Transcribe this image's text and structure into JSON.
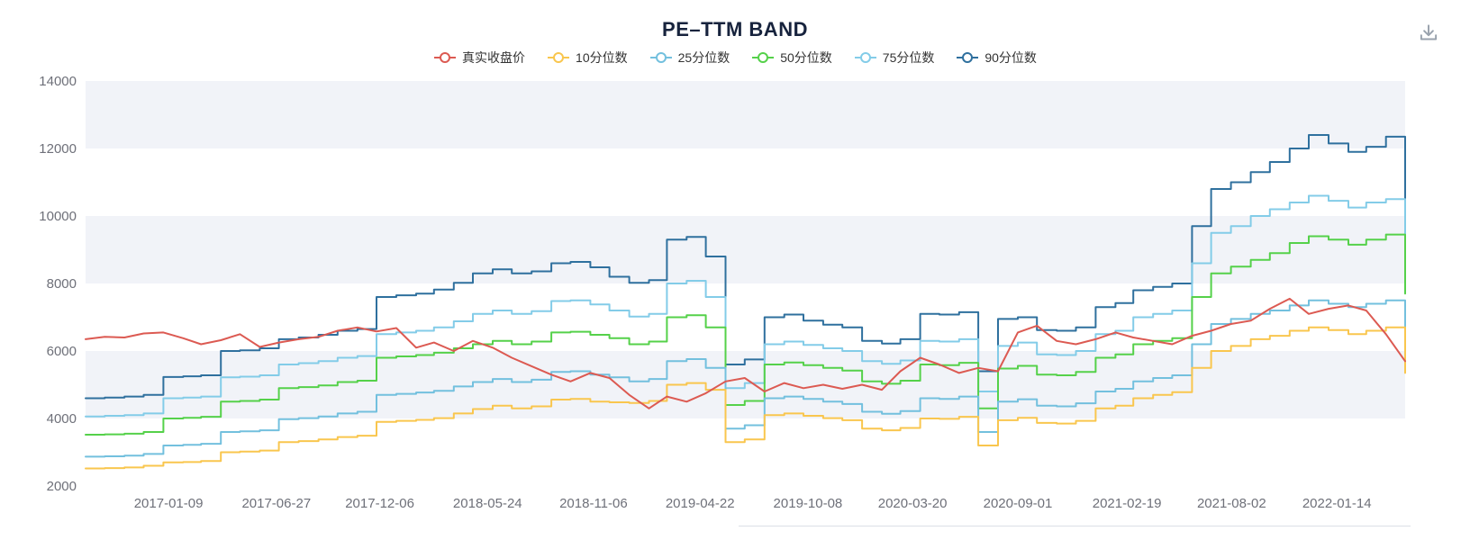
{
  "header": {
    "title": "PE–TTM BAND"
  },
  "toolbar": {
    "download_tooltip": "download"
  },
  "colors": {
    "title": "#17233d",
    "axis_label": "#6e7079",
    "band_light": "#f1f3f8",
    "band_white": "#ffffff",
    "icon_gray": "#99a2ad"
  },
  "legend": {
    "items": [
      {
        "label": "真实收盘价",
        "color": "#dc5a52"
      },
      {
        "label": "10分位数",
        "color": "#f9c64e"
      },
      {
        "label": "25分位数",
        "color": "#73c0de"
      },
      {
        "label": "50分位数",
        "color": "#55d14a"
      },
      {
        "label": "75分位数",
        "color": "#83cce8"
      },
      {
        "label": "90分位数",
        "color": "#2f709e"
      }
    ]
  },
  "chart_data": {
    "type": "line",
    "title": "PE–TTM BAND",
    "xlabel": "",
    "ylabel": "",
    "legend_position": "top",
    "grid": false,
    "band_colors": [
      "#f1f3f8",
      "#ffffff"
    ],
    "ylim": [
      2000,
      14000
    ],
    "y_ticks": [
      2000,
      4000,
      6000,
      8000,
      10000,
      12000,
      14000
    ],
    "x_tick_labels": [
      "2017-01-09",
      "2017-06-27",
      "2017-12-06",
      "2018-05-24",
      "2018-11-06",
      "2019-04-22",
      "2019-10-08",
      "2020-03-20",
      "2020-09-01",
      "2021-02-19",
      "2021-08-02",
      "2022-01-14"
    ],
    "x": [
      "2016-09-01",
      "2016-10-01",
      "2016-11-01",
      "2016-12-01",
      "2017-01-01",
      "2017-02-01",
      "2017-03-01",
      "2017-04-01",
      "2017-05-01",
      "2017-06-01",
      "2017-07-01",
      "2017-08-01",
      "2017-09-01",
      "2017-10-01",
      "2017-11-01",
      "2017-12-01",
      "2018-01-01",
      "2018-02-01",
      "2018-03-01",
      "2018-04-01",
      "2018-05-01",
      "2018-06-01",
      "2018-07-01",
      "2018-08-01",
      "2018-09-01",
      "2018-10-01",
      "2018-11-01",
      "2018-12-01",
      "2019-01-01",
      "2019-02-01",
      "2019-03-01",
      "2019-04-01",
      "2019-05-01",
      "2019-06-01",
      "2019-07-01",
      "2019-08-01",
      "2019-09-01",
      "2019-10-01",
      "2019-11-01",
      "2019-12-01",
      "2020-01-01",
      "2020-02-01",
      "2020-03-01",
      "2020-04-01",
      "2020-05-01",
      "2020-06-01",
      "2020-07-01",
      "2020-08-01",
      "2020-09-01",
      "2020-10-01",
      "2020-11-01",
      "2020-12-01",
      "2021-01-01",
      "2021-02-01",
      "2021-03-01",
      "2021-04-01",
      "2021-05-01",
      "2021-06-01",
      "2021-07-01",
      "2021-08-01",
      "2021-09-01",
      "2021-10-01",
      "2021-11-01",
      "2021-12-01",
      "2022-01-01",
      "2022-02-01",
      "2022-03-01",
      "2022-04-01",
      "2022-05-01"
    ],
    "series": [
      {
        "name": "90分位数",
        "color": "#2f709e",
        "step": true,
        "values": [
          4600,
          4620,
          4650,
          4700,
          5230,
          5250,
          5280,
          6000,
          6020,
          6080,
          6350,
          6400,
          6480,
          6600,
          6650,
          7600,
          7650,
          7700,
          7820,
          8020,
          8300,
          8420,
          8300,
          8360,
          8600,
          8640,
          8480,
          8200,
          8020,
          8100,
          9300,
          9380,
          8800,
          5600,
          5750,
          7000,
          7080,
          6900,
          6780,
          6700,
          6300,
          6220,
          6350,
          7100,
          7080,
          7150,
          5400,
          6950,
          7000,
          6620,
          6600,
          6700,
          7300,
          7420,
          7800,
          7900,
          8000,
          9700,
          10800,
          11000,
          11300,
          11600,
          12000,
          12400,
          12150,
          11900,
          12050,
          12350,
          10250
        ]
      },
      {
        "name": "75分位数",
        "color": "#83cce8",
        "step": true,
        "values": [
          4060,
          4080,
          4100,
          4150,
          4600,
          4620,
          4650,
          5220,
          5240,
          5280,
          5600,
          5640,
          5700,
          5800,
          5850,
          6500,
          6550,
          6600,
          6700,
          6880,
          7100,
          7200,
          7100,
          7180,
          7480,
          7500,
          7380,
          7200,
          7020,
          7100,
          8000,
          8080,
          7600,
          4900,
          5050,
          6200,
          6280,
          6180,
          6080,
          6000,
          5700,
          5620,
          5720,
          6300,
          6280,
          6350,
          4800,
          6150,
          6250,
          5900,
          5880,
          6000,
          6500,
          6600,
          7000,
          7100,
          7200,
          8600,
          9500,
          9700,
          10000,
          10200,
          10400,
          10600,
          10450,
          10250,
          10400,
          10500,
          8800
        ]
      },
      {
        "name": "50分位数",
        "color": "#55d14a",
        "step": true,
        "values": [
          3520,
          3530,
          3550,
          3600,
          4000,
          4020,
          4050,
          4500,
          4520,
          4560,
          4900,
          4930,
          4980,
          5080,
          5120,
          5800,
          5840,
          5880,
          5950,
          6080,
          6200,
          6300,
          6200,
          6280,
          6550,
          6570,
          6480,
          6380,
          6200,
          6280,
          7000,
          7060,
          6700,
          4400,
          4520,
          5600,
          5660,
          5580,
          5500,
          5420,
          5100,
          5030,
          5120,
          5600,
          5580,
          5650,
          4300,
          5480,
          5560,
          5300,
          5280,
          5380,
          5800,
          5900,
          6200,
          6300,
          6380,
          7600,
          8300,
          8500,
          8700,
          8900,
          9200,
          9400,
          9300,
          9150,
          9300,
          9450,
          7700
        ]
      },
      {
        "name": "25分位数",
        "color": "#73c0de",
        "step": true,
        "values": [
          2870,
          2880,
          2900,
          2950,
          3200,
          3220,
          3250,
          3600,
          3620,
          3650,
          3980,
          4010,
          4060,
          4150,
          4200,
          4700,
          4730,
          4770,
          4820,
          4950,
          5080,
          5170,
          5080,
          5150,
          5380,
          5400,
          5300,
          5220,
          5100,
          5170,
          5700,
          5760,
          5500,
          3700,
          3800,
          4600,
          4650,
          4580,
          4500,
          4430,
          4200,
          4140,
          4220,
          4600,
          4580,
          4650,
          3600,
          4500,
          4570,
          4380,
          4360,
          4450,
          4800,
          4880,
          5100,
          5200,
          5280,
          6200,
          6800,
          6950,
          7100,
          7200,
          7350,
          7500,
          7400,
          7300,
          7400,
          7500,
          6300
        ]
      },
      {
        "name": "10分位数",
        "color": "#f9c64e",
        "step": true,
        "values": [
          2520,
          2530,
          2550,
          2600,
          2700,
          2710,
          2740,
          3000,
          3020,
          3050,
          3300,
          3330,
          3380,
          3450,
          3490,
          3900,
          3930,
          3960,
          4010,
          4150,
          4280,
          4380,
          4300,
          4360,
          4560,
          4580,
          4500,
          4480,
          4460,
          4520,
          5000,
          5050,
          4850,
          3300,
          3380,
          4100,
          4150,
          4080,
          4010,
          3950,
          3700,
          3650,
          3720,
          4000,
          3990,
          4050,
          3200,
          3950,
          4020,
          3870,
          3850,
          3930,
          4300,
          4380,
          4600,
          4700,
          4780,
          5500,
          6000,
          6150,
          6350,
          6450,
          6600,
          6700,
          6620,
          6500,
          6600,
          6700,
          5350
        ]
      },
      {
        "name": "真实收盘价",
        "color": "#dc5a52",
        "step": false,
        "values": [
          6350,
          6420,
          6400,
          6520,
          6550,
          6380,
          6200,
          6320,
          6500,
          6120,
          6250,
          6350,
          6420,
          6600,
          6700,
          6580,
          6680,
          6100,
          6250,
          6000,
          6300,
          6100,
          5800,
          5550,
          5300,
          5100,
          5350,
          5200,
          4700,
          4300,
          4650,
          4500,
          4750,
          5100,
          5200,
          4800,
          5050,
          4900,
          5000,
          4880,
          5000,
          4850,
          5400,
          5800,
          5600,
          5350,
          5500,
          5400,
          6550,
          6750,
          6300,
          6200,
          6350,
          6550,
          6400,
          6300,
          6200,
          6450,
          6600,
          6800,
          6900,
          7250,
          7550,
          7100,
          7250,
          7350,
          7200,
          6500,
          5700
        ]
      }
    ]
  }
}
